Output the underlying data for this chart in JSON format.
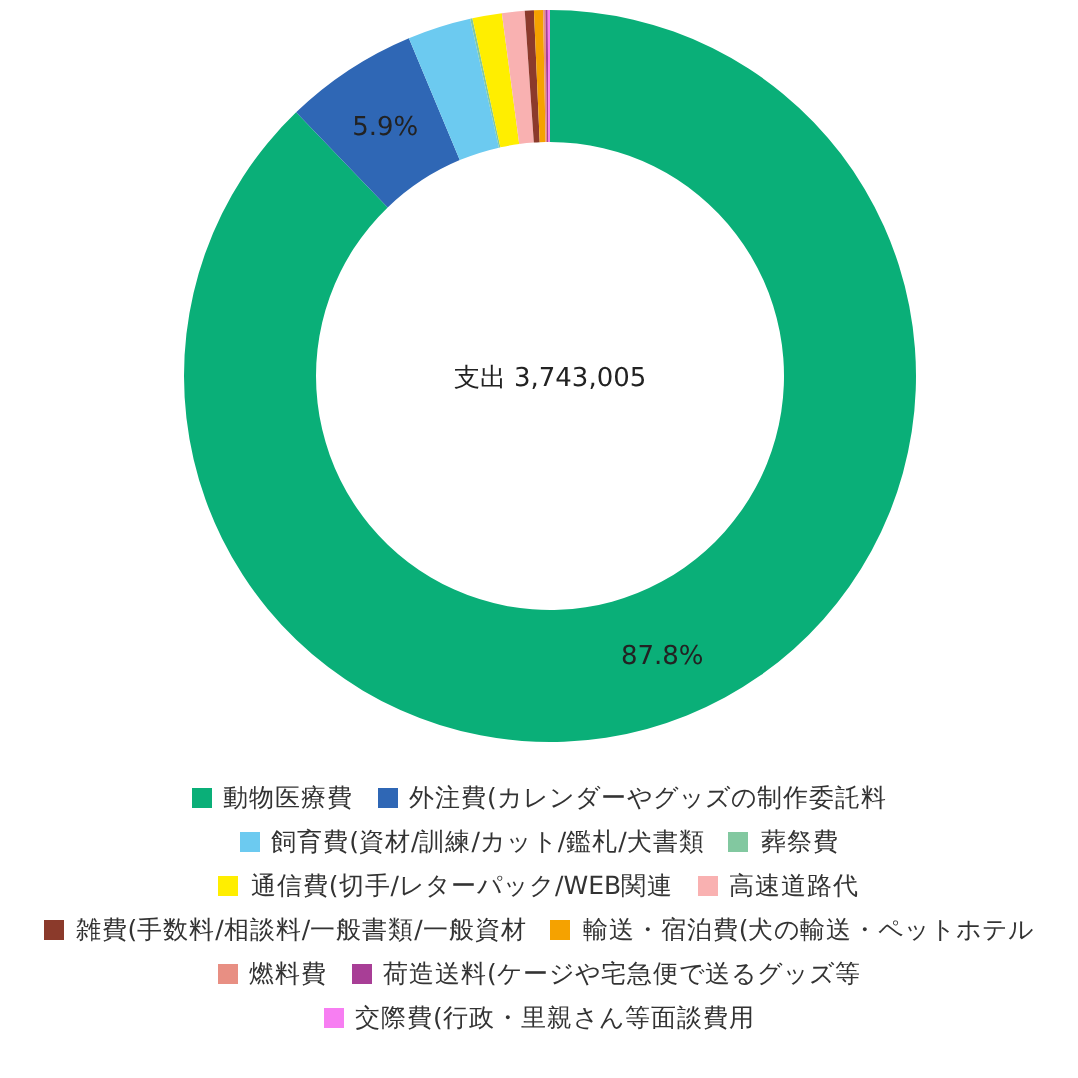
{
  "chart_data": {
    "type": "donut",
    "title": "支出 3,743,005",
    "categories": [
      "動物医療費",
      "外注費(カレンダーやグッズの制作委託料",
      "飼育費(資材/訓練/カット/鑑札/犬書類",
      "葬祭費",
      "通信費(切手/レターパック/WEB関連",
      "高速道路代",
      "雑費(手数料/相談料/一般書類/一般資材",
      "輸送・宿泊費(犬の輸送・ペットホテル",
      "燃料費",
      "荷造送料(ケージや宅急便で送るグッズ等",
      "交際費(行政・里親さん等面談費用"
    ],
    "values": [
      87.8,
      5.9,
      2.8,
      0.1,
      1.3,
      1.0,
      0.4,
      0.4,
      0.1,
      0.1,
      0.1
    ],
    "colors": [
      "#0aaf78",
      "#2f67b5",
      "#6ccaf0",
      "#82c8a0",
      "#ffee00",
      "#f9b1b1",
      "#8b3a2b",
      "#f5a200",
      "#e88f83",
      "#a83e96",
      "#f77ef2"
    ],
    "value_labels": [
      "87.8%",
      "5.9%",
      null,
      null,
      null,
      null,
      null,
      null,
      null,
      null,
      null
    ],
    "legend": "bottom"
  }
}
